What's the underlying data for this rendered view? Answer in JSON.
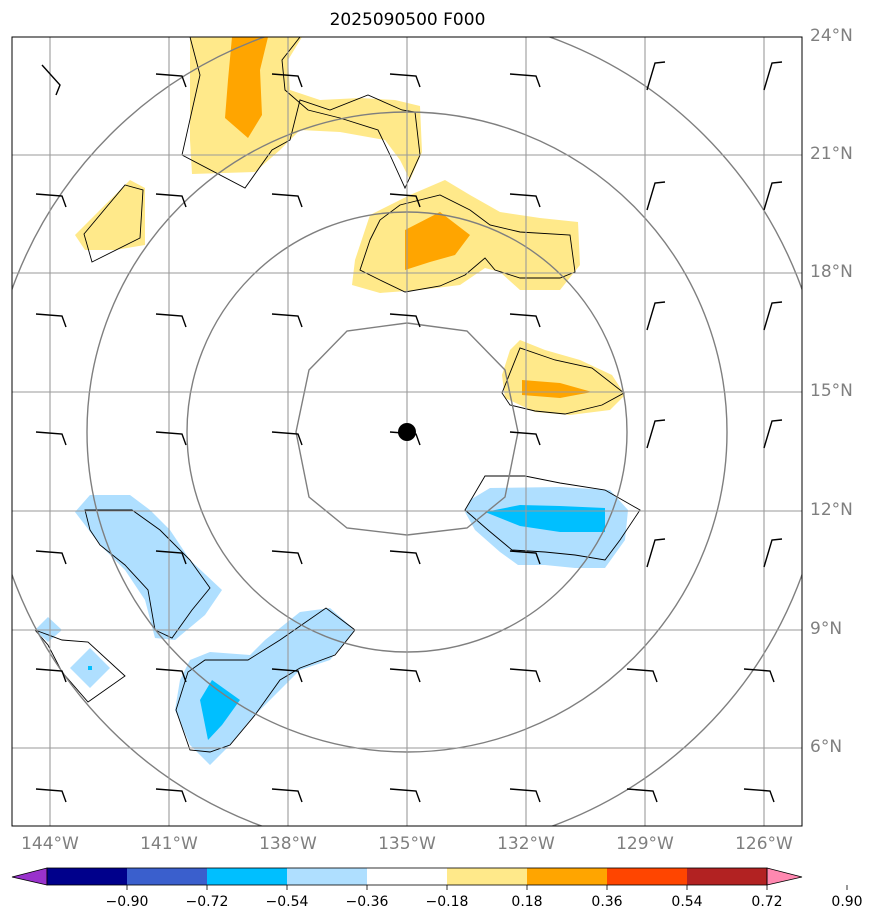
{
  "title": "2025090500 F000",
  "lat_labels": [
    "24°N",
    "21°N",
    "18°N",
    "15°N",
    "12°N",
    "9°N",
    "6°N"
  ],
  "lon_labels": [
    "144°W",
    "141°W",
    "138°W",
    "135°W",
    "132°W",
    "129°W",
    "126°W"
  ],
  "colorbar": {
    "ticks": [
      "−0.90",
      "−0.72",
      "−0.54",
      "−0.36",
      "−0.18",
      "0.18",
      "0.36",
      "0.54",
      "0.72",
      "0.90"
    ],
    "colors": [
      "#9932cc",
      "#00008b",
      "#3a5fcd",
      "#00bfff",
      "#afdfff",
      "#ffffff",
      "#ffe98a",
      "#ffa500",
      "#ff4500",
      "#b22222",
      "#ff88b0"
    ]
  },
  "field_colors": {
    "pos1": "#ffe98a",
    "pos2": "#ffa500",
    "neg1": "#afdfff",
    "neg2": "#00bfff"
  },
  "center_marker": {
    "lon": -135,
    "lat": 14
  }
}
